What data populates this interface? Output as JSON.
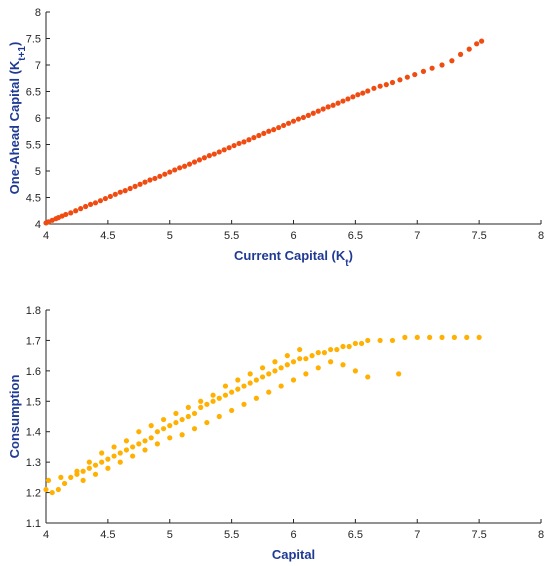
{
  "chart_data": [
    {
      "type": "scatter",
      "xlabel": "Current Capital (K",
      "xlabel_sub": "t",
      "xlabel_close": ")",
      "ylabel": "One-Ahead Capital (K",
      "ylabel_sub": "t+1",
      "ylabel_close": ")",
      "xlim": [
        4,
        8
      ],
      "ylim": [
        4,
        8
      ],
      "xticks": [
        "4",
        "4.5",
        "5",
        "5.5",
        "6",
        "6.5",
        "7",
        "7.5",
        "8"
      ],
      "yticks": [
        "4",
        "4.5",
        "5",
        "5.5",
        "6",
        "6.5",
        "7",
        "7.5",
        "8"
      ],
      "grid": false,
      "color": "#f04c12",
      "series": [
        {
          "x": [
            4.0,
            4.02,
            4.05,
            4.08,
            4.1,
            4.13,
            4.16,
            4.2,
            4.24,
            4.28,
            4.32,
            4.36,
            4.4,
            4.44,
            4.48,
            4.52,
            4.56,
            4.6,
            4.64,
            4.68,
            4.72,
            4.76,
            4.8,
            4.84,
            4.88,
            4.92,
            4.96,
            5.0,
            5.04,
            5.08,
            5.12,
            5.16,
            5.2,
            5.24,
            5.28,
            5.32,
            5.36,
            5.4,
            5.44,
            5.48,
            5.52,
            5.56,
            5.6,
            5.64,
            5.68,
            5.72,
            5.76,
            5.8,
            5.84,
            5.88,
            5.92,
            5.96,
            6.0,
            6.04,
            6.08,
            6.12,
            6.16,
            6.2,
            6.24,
            6.28,
            6.32,
            6.36,
            6.4,
            6.44,
            6.48,
            6.52,
            6.56,
            6.6,
            6.65,
            6.7,
            6.75,
            6.8,
            6.86,
            6.92,
            6.98,
            7.05,
            7.12,
            7.2,
            7.28,
            7.35,
            7.42,
            7.48,
            7.52
          ],
          "y": [
            4.02,
            4.04,
            4.07,
            4.1,
            4.12,
            4.15,
            4.18,
            4.21,
            4.25,
            4.29,
            4.33,
            4.37,
            4.4,
            4.44,
            4.48,
            4.52,
            4.56,
            4.6,
            4.63,
            4.67,
            4.71,
            4.75,
            4.79,
            4.83,
            4.86,
            4.9,
            4.94,
            4.98,
            5.02,
            5.06,
            5.09,
            5.13,
            5.17,
            5.21,
            5.25,
            5.29,
            5.32,
            5.36,
            5.4,
            5.44,
            5.48,
            5.52,
            5.55,
            5.59,
            5.63,
            5.67,
            5.71,
            5.75,
            5.78,
            5.82,
            5.86,
            5.9,
            5.94,
            5.98,
            6.01,
            6.05,
            6.09,
            6.13,
            6.17,
            6.21,
            6.24,
            6.28,
            6.32,
            6.36,
            6.4,
            6.44,
            6.47,
            6.51,
            6.56,
            6.6,
            6.63,
            6.67,
            6.72,
            6.77,
            6.82,
            6.88,
            6.94,
            7.0,
            7.08,
            7.2,
            7.3,
            7.4,
            7.45
          ]
        }
      ]
    },
    {
      "type": "scatter",
      "xlabel": "Capital",
      "ylabel": "Consumption",
      "xlim": [
        4,
        8
      ],
      "ylim": [
        1.1,
        1.8
      ],
      "xticks": [
        "4",
        "4.5",
        "5",
        "5.5",
        "6",
        "6.5",
        "7",
        "7.5",
        "8"
      ],
      "yticks": [
        "1.1",
        "1.2",
        "1.3",
        "1.4",
        "1.5",
        "1.6",
        "1.7",
        "1.8"
      ],
      "grid": false,
      "color": "#ffb000",
      "series": [
        {
          "x": [
            4.0,
            4.05,
            4.1,
            4.15,
            4.02,
            4.12,
            4.2,
            4.25,
            4.3,
            4.35,
            4.4,
            4.45,
            4.5,
            4.55,
            4.6,
            4.65,
            4.7,
            4.75,
            4.8,
            4.85,
            4.9,
            4.95,
            5.0,
            5.05,
            5.1,
            5.15,
            5.2,
            5.25,
            5.3,
            5.35,
            5.4,
            5.45,
            5.5,
            5.55,
            5.6,
            5.65,
            5.7,
            5.75,
            5.8,
            5.85,
            5.9,
            5.95,
            6.0,
            6.05,
            6.1,
            6.15,
            6.2,
            6.25,
            6.3,
            6.35,
            6.4,
            6.45,
            6.5,
            6.55,
            6.6,
            6.7,
            6.8,
            6.9,
            7.0,
            7.1,
            7.2,
            7.3,
            7.4,
            7.5,
            4.3,
            4.4,
            4.5,
            4.6,
            4.7,
            4.8,
            4.9,
            5.0,
            5.1,
            5.2,
            5.3,
            5.4,
            5.5,
            5.6,
            5.7,
            5.8,
            5.9,
            6.0,
            6.1,
            6.2,
            6.3,
            6.4,
            6.5,
            6.6,
            6.85,
            4.25,
            4.35,
            4.45,
            4.55,
            4.65,
            4.75,
            4.85,
            4.95,
            5.05,
            5.15,
            5.25,
            5.35,
            5.45,
            5.55,
            5.65,
            5.75,
            5.85,
            5.95,
            6.05
          ],
          "y": [
            1.21,
            1.2,
            1.21,
            1.23,
            1.24,
            1.25,
            1.25,
            1.26,
            1.27,
            1.28,
            1.29,
            1.3,
            1.31,
            1.32,
            1.33,
            1.34,
            1.35,
            1.36,
            1.37,
            1.38,
            1.4,
            1.41,
            1.42,
            1.43,
            1.44,
            1.45,
            1.46,
            1.48,
            1.49,
            1.5,
            1.51,
            1.52,
            1.53,
            1.54,
            1.55,
            1.56,
            1.57,
            1.58,
            1.59,
            1.6,
            1.61,
            1.62,
            1.63,
            1.64,
            1.64,
            1.65,
            1.66,
            1.66,
            1.67,
            1.67,
            1.68,
            1.68,
            1.69,
            1.69,
            1.7,
            1.7,
            1.7,
            1.71,
            1.71,
            1.71,
            1.71,
            1.71,
            1.71,
            1.71,
            1.24,
            1.26,
            1.28,
            1.3,
            1.32,
            1.34,
            1.36,
            1.38,
            1.39,
            1.41,
            1.43,
            1.45,
            1.47,
            1.49,
            1.51,
            1.53,
            1.55,
            1.57,
            1.59,
            1.61,
            1.63,
            1.62,
            1.6,
            1.58,
            1.59,
            1.27,
            1.3,
            1.33,
            1.35,
            1.37,
            1.4,
            1.42,
            1.44,
            1.46,
            1.48,
            1.5,
            1.52,
            1.55,
            1.57,
            1.59,
            1.61,
            1.63,
            1.65,
            1.67
          ]
        }
      ]
    }
  ]
}
